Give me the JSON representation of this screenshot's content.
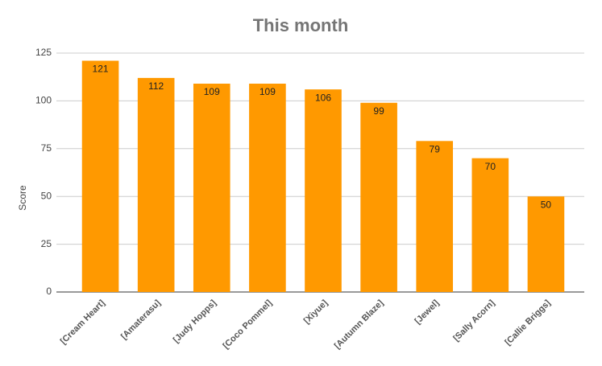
{
  "chart_data": {
    "type": "bar",
    "title": "This month",
    "y_label": "Score",
    "categories": [
      "[Cream Heart]",
      "[Amaterasu]",
      "[Judy Hopps]",
      "[Coco Pommel]",
      "[Xiyue]",
      "[Autumn Blaze]",
      "[Jewel]",
      "[Sally Acorn]",
      "[Callie Briggs]"
    ],
    "values": [
      121,
      112,
      109,
      109,
      106,
      99,
      79,
      70,
      50
    ],
    "color": "#ff9900",
    "ylim": [
      0,
      125
    ],
    "yticks": [
      0,
      25,
      50,
      75,
      100,
      125
    ],
    "grid": true
  }
}
